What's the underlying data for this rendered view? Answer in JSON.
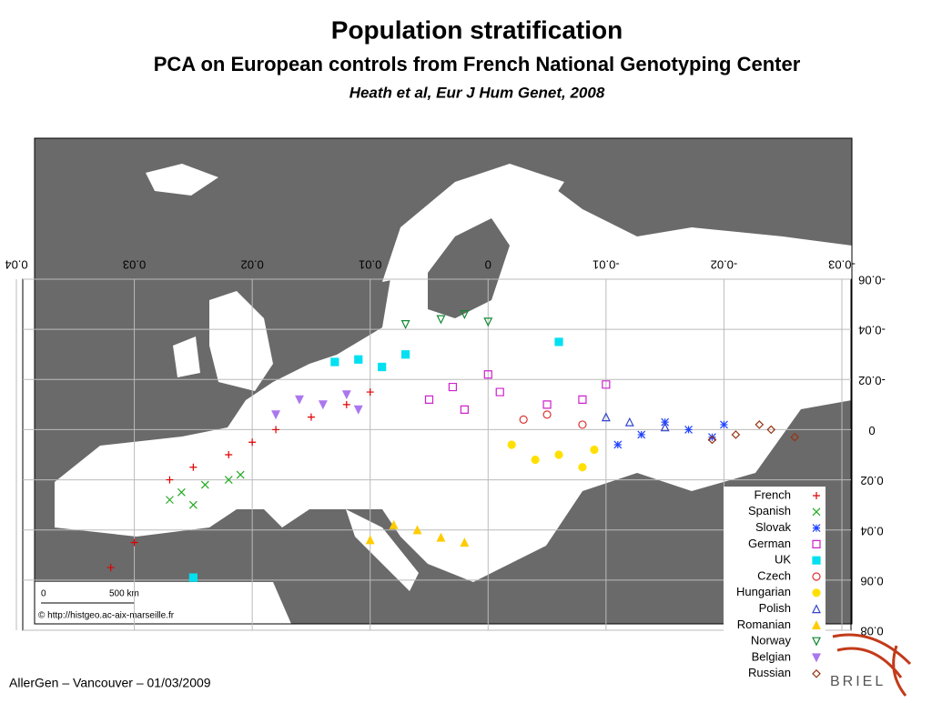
{
  "slide": {
    "title": "Population stratification",
    "subtitle": "PCA on European controls from French National Genotyping Center",
    "citation": "Heath et al, Eur J Hum Genet, 2008",
    "footer": "AllerGen – Vancouver – 01/03/2009",
    "logo": "BRIEL"
  },
  "map": {
    "scale_start": "0",
    "scale_end": "500 km",
    "credit": "© http://histgeo.ac-aix-marseille.fr"
  },
  "chart_data": {
    "type": "scatter",
    "xlim": [
      0.04,
      -0.03
    ],
    "ylim": [
      -0.06,
      0.08
    ],
    "xticks": [
      0.04,
      0.03,
      0.02,
      0.01,
      0,
      -0.01,
      -0.02,
      -0.03
    ],
    "yticks": [
      -0.06,
      -0.04,
      -0.02,
      0,
      0.02,
      0.04,
      0.06,
      0.08
    ],
    "grid": true,
    "series": [
      {
        "name": "French",
        "color": "#e00000",
        "marker": "plus",
        "x": [
          0.018,
          0.02,
          0.015,
          0.022,
          0.012,
          0.025,
          0.027,
          0.01,
          0.03,
          0.032
        ],
        "y": [
          0.0,
          0.005,
          -0.005,
          0.01,
          -0.01,
          0.015,
          0.02,
          -0.015,
          0.045,
          0.055
        ]
      },
      {
        "name": "Spanish",
        "color": "#22aa22",
        "marker": "x",
        "x": [
          0.024,
          0.026,
          0.022,
          0.027,
          0.021,
          0.025
        ],
        "y": [
          0.022,
          0.025,
          0.02,
          0.028,
          0.018,
          0.03
        ]
      },
      {
        "name": "Slovak",
        "color": "#2244ff",
        "marker": "asterisk",
        "x": [
          -0.017,
          -0.015,
          -0.019,
          -0.013,
          -0.02,
          -0.011
        ],
        "y": [
          0.0,
          -0.003,
          0.003,
          0.002,
          -0.002,
          0.006
        ]
      },
      {
        "name": "German",
        "color": "#cc22cc",
        "marker": "square",
        "x": [
          0.003,
          -0.001,
          -0.005,
          0.0,
          -0.008,
          0.005,
          -0.01,
          0.002
        ],
        "y": [
          -0.017,
          -0.015,
          -0.01,
          -0.022,
          -0.012,
          -0.012,
          -0.018,
          -0.008
        ]
      },
      {
        "name": "UK",
        "color": "#00e0f0",
        "marker": "filled-square",
        "x": [
          0.011,
          0.009,
          0.013,
          0.007,
          -0.006,
          0.025
        ],
        "y": [
          -0.028,
          -0.025,
          -0.027,
          -0.03,
          -0.035,
          0.059
        ]
      },
      {
        "name": "Czech",
        "color": "#dd3333",
        "marker": "circle",
        "x": [
          -0.005,
          -0.003,
          -0.008
        ],
        "y": [
          -0.006,
          -0.004,
          -0.002
        ]
      },
      {
        "name": "Hungarian",
        "color": "#ffe000",
        "marker": "filled-circle",
        "x": [
          -0.006,
          -0.004,
          -0.009,
          -0.002,
          -0.008
        ],
        "y": [
          0.01,
          0.012,
          0.008,
          0.006,
          0.015
        ]
      },
      {
        "name": "Polish",
        "color": "#3344cc",
        "marker": "triangle",
        "x": [
          -0.012,
          -0.015,
          -0.01
        ],
        "y": [
          -0.003,
          -0.001,
          -0.005
        ]
      },
      {
        "name": "Romanian",
        "color": "#ffcc00",
        "marker": "filled-triangle",
        "x": [
          0.006,
          0.004,
          0.008,
          0.002,
          0.01
        ],
        "y": [
          0.04,
          0.043,
          0.038,
          0.045,
          0.044
        ]
      },
      {
        "name": "Norway",
        "color": "#118833",
        "marker": "triangle-down",
        "x": [
          0.004,
          0.002,
          0.007,
          0.0
        ],
        "y": [
          -0.044,
          -0.046,
          -0.042,
          -0.043
        ]
      },
      {
        "name": "Belgian",
        "color": "#aa77ee",
        "marker": "filled-triangle-down",
        "x": [
          0.014,
          0.016,
          0.011,
          0.018,
          0.012
        ],
        "y": [
          -0.01,
          -0.012,
          -0.008,
          -0.006,
          -0.014
        ]
      },
      {
        "name": "Russian",
        "color": "#993311",
        "marker": "diamond",
        "x": [
          -0.021,
          -0.024,
          -0.019,
          -0.026,
          -0.023
        ],
        "y": [
          0.002,
          0.0,
          0.004,
          0.003,
          -0.002
        ]
      }
    ]
  }
}
